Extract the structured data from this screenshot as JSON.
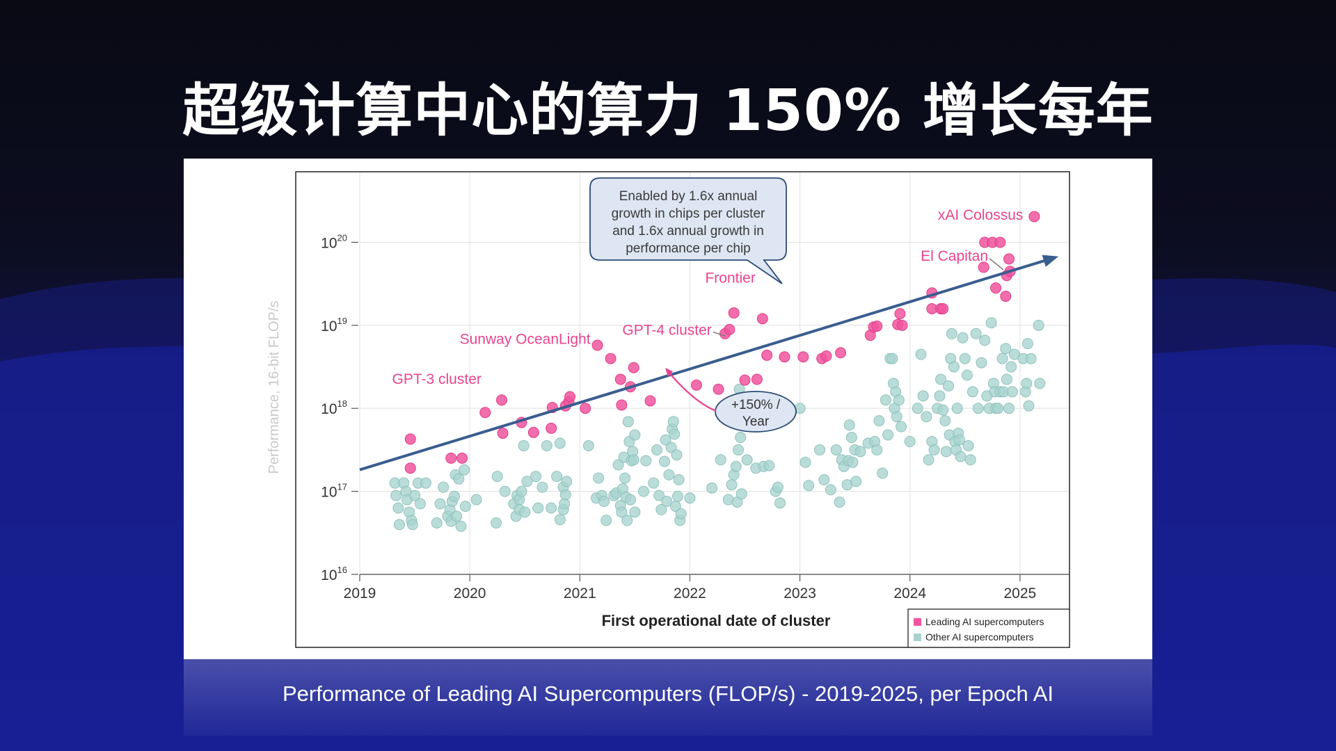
{
  "slide": {
    "title": "超级计算中心的算力 150% 增长每年",
    "caption": "Performance of Leading AI Supercomputers (FLOP/s) - 2019-2025, per Epoch AI"
  },
  "colors": {
    "leading": "#f0559e",
    "other": "#a8d3ce",
    "trend": "#3a5d8f",
    "label": "#e8448e"
  },
  "chart_data": {
    "type": "scatter",
    "xlabel": "First operational date of cluster",
    "ylabel": "Performance, 16-bit FLOP/s",
    "xlim": [
      2019,
      2025.45
    ],
    "ylim": [
      16,
      20.85
    ],
    "yscale": "log",
    "x_ticks": [
      "2019",
      "2020",
      "2021",
      "2022",
      "2023",
      "2024",
      "2025"
    ],
    "y_ticks": [
      {
        "base": "10",
        "exp": "16"
      },
      {
        "base": "10",
        "exp": "17"
      },
      {
        "base": "10",
        "exp": "18"
      },
      {
        "base": "10",
        "exp": "19"
      },
      {
        "base": "10",
        "exp": "20"
      }
    ],
    "legend": {
      "position": "bottom-right",
      "entries": [
        "Leading AI supercomputers",
        "Other AI supercomputers"
      ]
    },
    "trend": {
      "x": [
        2019.0,
        2025.35
      ],
      "y": [
        17.26,
        19.83
      ]
    },
    "callout": {
      "lines": [
        "Enabled by 1.6x annual",
        "growth in chips per cluster",
        "and 1.6x annual growth in",
        "performance per chip"
      ]
    },
    "growth_label": {
      "lines": [
        "+150% /",
        "Year"
      ]
    },
    "annotations": [
      {
        "text": "xAI Colossus",
        "x": 2025.13,
        "y": 20.33
      },
      {
        "text": "El Capitan",
        "x": 2024.9,
        "y": 19.72
      },
      {
        "text": "Frontier",
        "x": 2022.4,
        "y": 19.33
      },
      {
        "text": "GPT-4 cluster",
        "x": 2022.35,
        "y": 18.92
      },
      {
        "text": "Sunway OceanLight",
        "x": 2021.16,
        "y": 18.8
      },
      {
        "text": "GPT-3 cluster",
        "x": 2019.7,
        "y": 18.28
      }
    ],
    "series": [
      {
        "name": "Leading AI supercomputers",
        "points": [
          [
            2019.46,
            17.63
          ],
          [
            2019.46,
            17.28
          ],
          [
            2019.83,
            17.4
          ],
          [
            2019.93,
            17.4
          ],
          [
            2020.14,
            17.95
          ],
          [
            2020.29,
            18.1
          ],
          [
            2020.3,
            17.7
          ],
          [
            2020.47,
            17.83
          ],
          [
            2020.58,
            17.71
          ],
          [
            2020.74,
            17.76
          ],
          [
            2020.75,
            18.01
          ],
          [
            2020.87,
            18.03
          ],
          [
            2020.9,
            18.08
          ],
          [
            2020.91,
            18.14
          ],
          [
            2021.05,
            18.0
          ],
          [
            2021.16,
            18.76
          ],
          [
            2021.28,
            18.6
          ],
          [
            2021.37,
            18.35
          ],
          [
            2021.38,
            18.04
          ],
          [
            2021.46,
            18.26
          ],
          [
            2021.49,
            18.49
          ],
          [
            2021.64,
            18.09
          ],
          [
            2022.06,
            18.28
          ],
          [
            2022.26,
            18.23
          ],
          [
            2022.32,
            18.9
          ],
          [
            2022.36,
            18.95
          ],
          [
            2022.4,
            19.15
          ],
          [
            2022.5,
            18.34
          ],
          [
            2022.61,
            18.35
          ],
          [
            2022.66,
            19.08
          ],
          [
            2022.7,
            18.64
          ],
          [
            2022.86,
            18.62
          ],
          [
            2023.03,
            18.62
          ],
          [
            2023.2,
            18.6
          ],
          [
            2023.24,
            18.63
          ],
          [
            2023.37,
            18.67
          ],
          [
            2023.64,
            18.88
          ],
          [
            2023.67,
            18.98
          ],
          [
            2023.7,
            18.99
          ],
          [
            2023.89,
            19.01
          ],
          [
            2023.91,
            19.14
          ],
          [
            2023.93,
            19.0
          ],
          [
            2024.2,
            19.39
          ],
          [
            2024.2,
            19.2
          ],
          [
            2024.28,
            19.2
          ],
          [
            2024.3,
            19.2
          ],
          [
            2024.67,
            19.7
          ],
          [
            2024.68,
            20.0
          ],
          [
            2024.75,
            20.0
          ],
          [
            2024.82,
            20.0
          ],
          [
            2024.78,
            19.45
          ],
          [
            2024.87,
            19.35
          ],
          [
            2024.88,
            19.6
          ],
          [
            2024.9,
            19.8
          ],
          [
            2024.91,
            19.65
          ],
          [
            2025.13,
            20.31
          ]
        ]
      },
      {
        "name": "Other AI supercomputers",
        "points": [
          [
            2019.32,
            17.1
          ],
          [
            2019.33,
            16.95
          ],
          [
            2019.35,
            16.8
          ],
          [
            2019.36,
            16.6
          ],
          [
            2019.4,
            17.1
          ],
          [
            2019.42,
            17.0
          ],
          [
            2019.43,
            16.9
          ],
          [
            2019.45,
            16.75
          ],
          [
            2019.47,
            16.65
          ],
          [
            2019.48,
            16.6
          ],
          [
            2019.5,
            16.95
          ],
          [
            2019.53,
            17.1
          ],
          [
            2019.55,
            16.85
          ],
          [
            2019.6,
            17.1
          ],
          [
            2019.7,
            16.62
          ],
          [
            2019.73,
            16.85
          ],
          [
            2019.76,
            17.05
          ],
          [
            2019.8,
            16.7
          ],
          [
            2019.82,
            16.78
          ],
          [
            2019.83,
            16.64
          ],
          [
            2019.84,
            16.88
          ],
          [
            2019.86,
            16.94
          ],
          [
            2019.87,
            17.2
          ],
          [
            2019.88,
            16.7
          ],
          [
            2019.9,
            17.15
          ],
          [
            2019.92,
            16.58
          ],
          [
            2019.95,
            17.26
          ],
          [
            2019.96,
            16.82
          ],
          [
            2020.06,
            16.9
          ],
          [
            2020.24,
            16.62
          ],
          [
            2020.25,
            17.18
          ],
          [
            2020.32,
            17.0
          ],
          [
            2020.4,
            16.85
          ],
          [
            2020.42,
            16.7
          ],
          [
            2020.43,
            16.95
          ],
          [
            2020.45,
            16.9
          ],
          [
            2020.45,
            16.78
          ],
          [
            2020.47,
            17.0
          ],
          [
            2020.49,
            17.55
          ],
          [
            2020.5,
            16.75
          ],
          [
            2020.52,
            17.12
          ],
          [
            2020.6,
            17.18
          ],
          [
            2020.62,
            16.8
          ],
          [
            2020.66,
            17.05
          ],
          [
            2020.7,
            17.55
          ],
          [
            2020.74,
            16.8
          ],
          [
            2020.79,
            17.18
          ],
          [
            2020.82,
            16.66
          ],
          [
            2020.82,
            17.58
          ],
          [
            2020.85,
            17.05
          ],
          [
            2020.85,
            16.78
          ],
          [
            2020.86,
            16.85
          ],
          [
            2020.87,
            16.96
          ],
          [
            2020.88,
            17.12
          ],
          [
            2021.08,
            17.55
          ],
          [
            2021.15,
            16.92
          ],
          [
            2021.17,
            17.16
          ],
          [
            2021.2,
            16.95
          ],
          [
            2021.22,
            16.88
          ],
          [
            2021.24,
            16.65
          ],
          [
            2021.31,
            16.95
          ],
          [
            2021.33,
            16.98
          ],
          [
            2021.35,
            17.32
          ],
          [
            2021.37,
            16.83
          ],
          [
            2021.38,
            16.75
          ],
          [
            2021.39,
            17.03
          ],
          [
            2021.4,
            17.41
          ],
          [
            2021.41,
            17.16
          ],
          [
            2021.42,
            16.93
          ],
          [
            2021.43,
            16.65
          ],
          [
            2021.44,
            17.84
          ],
          [
            2021.45,
            17.6
          ],
          [
            2021.46,
            16.9
          ],
          [
            2021.47,
            17.37
          ],
          [
            2021.48,
            17.48
          ],
          [
            2021.49,
            17.38
          ],
          [
            2021.5,
            17.68
          ],
          [
            2021.5,
            16.75
          ],
          [
            2021.58,
            17.0
          ],
          [
            2021.6,
            17.37
          ],
          [
            2021.67,
            17.1
          ],
          [
            2021.7,
            17.5
          ],
          [
            2021.72,
            16.95
          ],
          [
            2021.74,
            16.78
          ],
          [
            2021.77,
            17.36
          ],
          [
            2021.78,
            17.62
          ],
          [
            2021.79,
            16.88
          ],
          [
            2021.81,
            17.2
          ],
          [
            2021.83,
            17.53
          ],
          [
            2021.84,
            17.75
          ],
          [
            2021.85,
            17.84
          ],
          [
            2021.86,
            17.69
          ],
          [
            2021.87,
            16.82
          ],
          [
            2021.88,
            17.44
          ],
          [
            2021.89,
            16.94
          ],
          [
            2021.9,
            17.14
          ],
          [
            2021.91,
            16.65
          ],
          [
            2021.92,
            16.73
          ],
          [
            2022.0,
            16.92
          ],
          [
            2022.2,
            17.04
          ],
          [
            2022.28,
            17.38
          ],
          [
            2022.35,
            16.9
          ],
          [
            2022.38,
            17.08
          ],
          [
            2022.4,
            17.2
          ],
          [
            2022.42,
            17.3
          ],
          [
            2022.43,
            16.87
          ],
          [
            2022.44,
            17.5
          ],
          [
            2022.45,
            18.23
          ],
          [
            2022.46,
            17.65
          ],
          [
            2022.47,
            16.97
          ],
          [
            2022.52,
            17.38
          ],
          [
            2022.6,
            17.28
          ],
          [
            2022.67,
            17.3
          ],
          [
            2022.72,
            17.31
          ],
          [
            2022.78,
            17.0
          ],
          [
            2022.8,
            17.05
          ],
          [
            2022.82,
            16.86
          ],
          [
            2023.0,
            18.0
          ],
          [
            2023.05,
            17.35
          ],
          [
            2023.08,
            17.07
          ],
          [
            2023.18,
            17.5
          ],
          [
            2023.22,
            17.14
          ],
          [
            2023.28,
            17.02
          ],
          [
            2023.33,
            17.5
          ],
          [
            2023.36,
            16.87
          ],
          [
            2023.38,
            17.38
          ],
          [
            2023.4,
            17.3
          ],
          [
            2023.43,
            17.08
          ],
          [
            2023.44,
            17.37
          ],
          [
            2023.45,
            17.8
          ],
          [
            2023.47,
            17.65
          ],
          [
            2023.48,
            17.35
          ],
          [
            2023.5,
            17.5
          ],
          [
            2023.51,
            17.12
          ],
          [
            2023.55,
            17.48
          ],
          [
            2023.62,
            17.58
          ],
          [
            2023.68,
            17.6
          ],
          [
            2023.7,
            17.5
          ],
          [
            2023.72,
            17.85
          ],
          [
            2023.75,
            17.22
          ],
          [
            2023.78,
            18.1
          ],
          [
            2023.8,
            17.68
          ],
          [
            2023.82,
            18.6
          ],
          [
            2023.84,
            18.6
          ],
          [
            2023.85,
            18.3
          ],
          [
            2023.86,
            18.0
          ],
          [
            2023.87,
            18.2
          ],
          [
            2023.88,
            17.9
          ],
          [
            2023.9,
            18.1
          ],
          [
            2023.92,
            17.78
          ],
          [
            2024.0,
            17.6
          ],
          [
            2024.07,
            18.0
          ],
          [
            2024.1,
            18.65
          ],
          [
            2024.12,
            18.15
          ],
          [
            2024.15,
            17.9
          ],
          [
            2024.17,
            17.38
          ],
          [
            2024.2,
            17.6
          ],
          [
            2024.22,
            17.5
          ],
          [
            2024.25,
            18.0
          ],
          [
            2024.27,
            18.15
          ],
          [
            2024.28,
            18.35
          ],
          [
            2024.3,
            17.98
          ],
          [
            2024.32,
            17.85
          ],
          [
            2024.33,
            17.48
          ],
          [
            2024.35,
            18.27
          ],
          [
            2024.36,
            17.68
          ],
          [
            2024.37,
            18.6
          ],
          [
            2024.38,
            18.9
          ],
          [
            2024.4,
            18.5
          ],
          [
            2024.41,
            17.6
          ],
          [
            2024.42,
            17.5
          ],
          [
            2024.43,
            18.0
          ],
          [
            2024.44,
            17.7
          ],
          [
            2024.45,
            17.62
          ],
          [
            2024.46,
            17.42
          ],
          [
            2024.48,
            18.85
          ],
          [
            2024.5,
            18.6
          ],
          [
            2024.52,
            18.4
          ],
          [
            2024.53,
            17.55
          ],
          [
            2024.55,
            17.38
          ],
          [
            2024.57,
            18.2
          ],
          [
            2024.6,
            18.9
          ],
          [
            2024.62,
            18.0
          ],
          [
            2024.65,
            18.55
          ],
          [
            2024.68,
            18.82
          ],
          [
            2024.7,
            18.15
          ],
          [
            2024.72,
            18.0
          ],
          [
            2024.74,
            19.03
          ],
          [
            2024.76,
            18.3
          ],
          [
            2024.77,
            18.2
          ],
          [
            2024.78,
            18.0
          ],
          [
            2024.8,
            18.0
          ],
          [
            2024.82,
            18.2
          ],
          [
            2024.84,
            18.6
          ],
          [
            2024.85,
            18.2
          ],
          [
            2024.87,
            18.72
          ],
          [
            2024.88,
            18.35
          ],
          [
            2024.9,
            18.0
          ],
          [
            2024.92,
            18.5
          ],
          [
            2024.93,
            18.2
          ],
          [
            2024.95,
            18.65
          ],
          [
            2025.03,
            18.6
          ],
          [
            2025.05,
            18.2
          ],
          [
            2025.06,
            18.3
          ],
          [
            2025.07,
            18.78
          ],
          [
            2025.08,
            18.03
          ],
          [
            2025.1,
            18.6
          ],
          [
            2025.17,
            19.0
          ],
          [
            2025.18,
            18.3
          ]
        ]
      }
    ]
  }
}
